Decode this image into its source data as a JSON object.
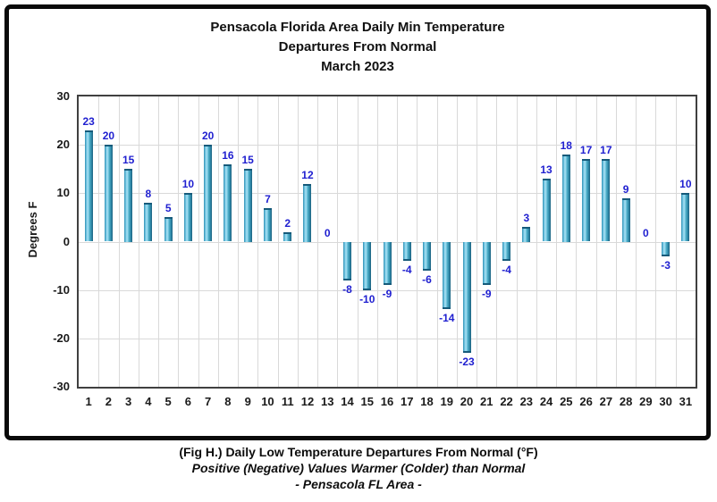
{
  "chart_data": {
    "type": "bar",
    "title_lines": [
      "Pensacola Florida Area Daily Min Temperature",
      "Departures From Normal",
      "March 2023"
    ],
    "ylabel": "Degrees F",
    "xlabel": "",
    "ylim": [
      -30,
      30
    ],
    "yticks": [
      30,
      20,
      10,
      0,
      -10,
      -20,
      -30
    ],
    "grid": "major-both",
    "legend": "none",
    "categories": [
      1,
      2,
      3,
      4,
      5,
      6,
      7,
      8,
      9,
      10,
      11,
      12,
      13,
      14,
      15,
      16,
      17,
      18,
      19,
      20,
      21,
      22,
      23,
      24,
      25,
      26,
      27,
      28,
      29,
      30,
      31
    ],
    "values": [
      23,
      20,
      15,
      8,
      5,
      10,
      20,
      16,
      15,
      7,
      2,
      12,
      0,
      -8,
      -10,
      -9,
      -4,
      -6,
      -14,
      -23,
      -9,
      -4,
      3,
      13,
      18,
      17,
      17,
      9,
      0,
      -3,
      10
    ],
    "bar_color_main": "#4bacc6",
    "bar_color_light": "#abe2f4",
    "bar_color_dark": "#1c607e",
    "value_label_color": "#2020d0",
    "gridline_color": "#d9d9d9",
    "plot_border_color": "#404040"
  },
  "caption": {
    "line1": "(Fig H.) Daily Low Temperature Departures From Normal (°F)",
    "line2": "Positive (Negative) Values Warmer (Colder) than Normal",
    "line3": "- Pensacola FL Area -"
  },
  "frame": {
    "border_color": "#0a0a0a",
    "background": "#ffffff"
  }
}
